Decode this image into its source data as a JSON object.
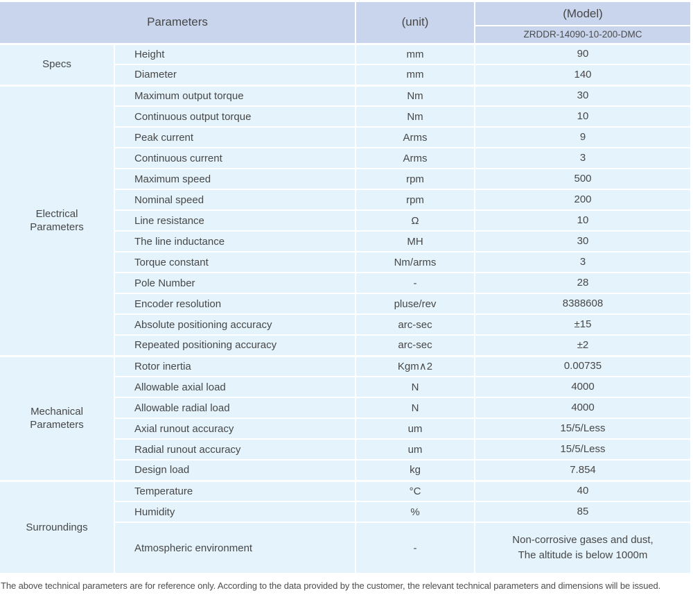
{
  "table": {
    "header": {
      "parameters_label": "Parameters",
      "unit_label": "(unit)",
      "model_label": "(Model)",
      "model_value": "ZRDDR-14090-10-200-DMC"
    },
    "sections": [
      {
        "category": "Specs",
        "rows": [
          {
            "name": "Height",
            "unit": "mm",
            "value": "90"
          },
          {
            "name": "Diameter",
            "unit": "mm",
            "value": "140"
          }
        ]
      },
      {
        "category": "Electrical Parameters",
        "rows": [
          {
            "name": "Maximum output torque",
            "unit": "Nm",
            "value": "30"
          },
          {
            "name": "Continuous output torque",
            "unit": "Nm",
            "value": "10"
          },
          {
            "name": "Peak current",
            "unit": "Arms",
            "value": "9"
          },
          {
            "name": "Continuous current",
            "unit": "Arms",
            "value": "3"
          },
          {
            "name": "Maximum speed",
            "unit": "rpm",
            "value": "500"
          },
          {
            "name": "Nominal speed",
            "unit": "rpm",
            "value": "200"
          },
          {
            "name": "Line resistance",
            "unit": "Ω",
            "value": "10"
          },
          {
            "name": "The line inductance",
            "unit": "MH",
            "value": "30"
          },
          {
            "name": "Torque constant",
            "unit": "Nm/arms",
            "value": "3"
          },
          {
            "name": "Pole Number",
            "unit": "-",
            "value": "28"
          },
          {
            "name": "Encoder resolution",
            "unit": "pluse/rev",
            "value": "8388608"
          },
          {
            "name": "Absolute positioning accuracy",
            "unit": "arc-sec",
            "value": "±15"
          },
          {
            "name": "Repeated positioning accuracy",
            "unit": "arc-sec",
            "value": "±2"
          }
        ]
      },
      {
        "category": "Mechanical Parameters",
        "rows": [
          {
            "name": "Rotor inertia",
            "unit": "Kgm∧2",
            "value": "0.00735"
          },
          {
            "name": "Allowable axial load",
            "unit": "N",
            "value": "4000"
          },
          {
            "name": "Allowable radial load",
            "unit": "N",
            "value": "4000"
          },
          {
            "name": "Axial runout accuracy",
            "unit": "um",
            "value": "15/5/Less"
          },
          {
            "name": "Radial runout accuracy",
            "unit": "um",
            "value": "15/5/Less"
          },
          {
            "name": "Design load",
            "unit": "kg",
            "value": "7.854"
          }
        ]
      },
      {
        "category": "Surroundings",
        "rows": [
          {
            "name": "Temperature",
            "unit": "°C",
            "value": "40"
          },
          {
            "name": "Humidity",
            "unit": "%",
            "value": "85"
          },
          {
            "name": "Atmospheric environment",
            "unit": "-",
            "value": "Non-corrosive gases and dust,\nThe altitude is below 1000m",
            "tall": true
          }
        ]
      }
    ]
  },
  "footer": {
    "note": "The above technical parameters are for reference only. According to the data provided by the customer, the relevant technical parameters and dimensions will be issued."
  },
  "colors": {
    "header_bg": "#c9d5ec",
    "cell_bg": "#e4f3fc",
    "grid": "#ffffff",
    "text": "#474747"
  }
}
